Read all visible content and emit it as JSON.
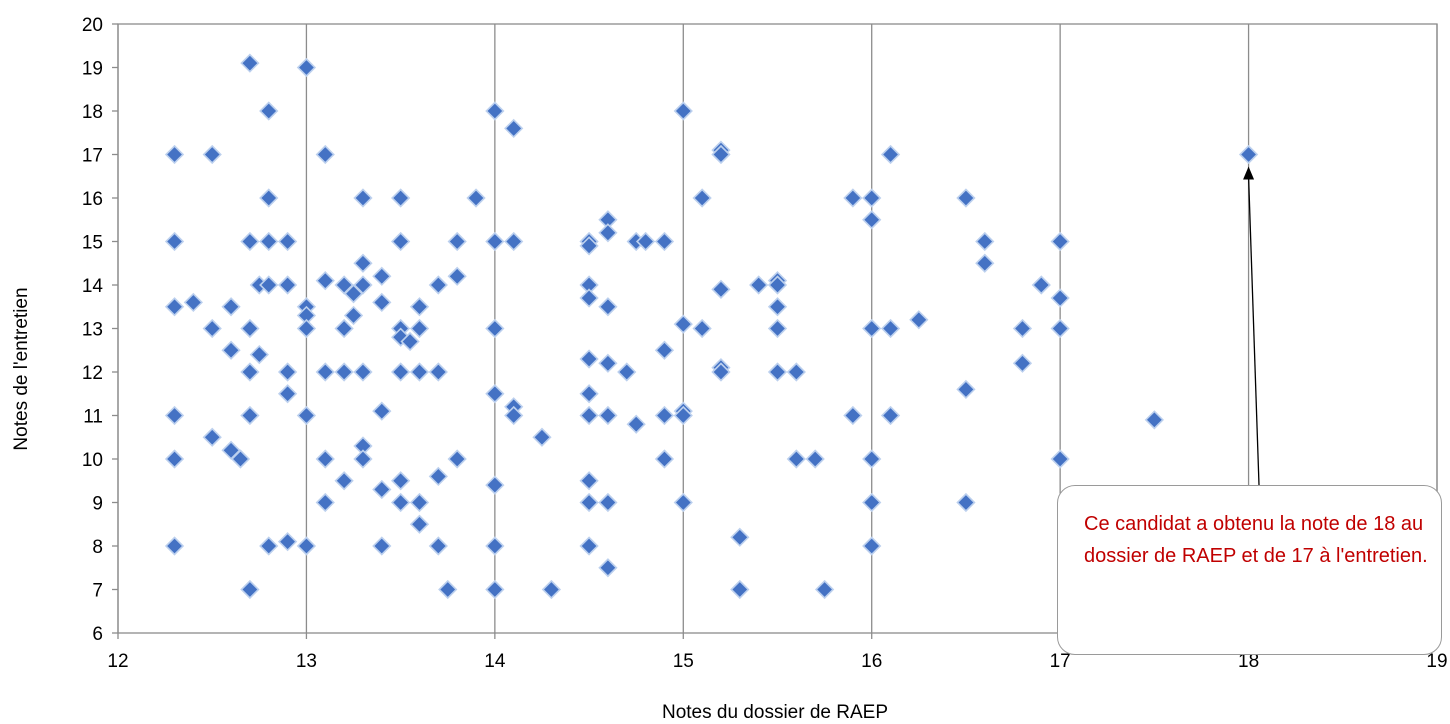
{
  "chart_data": {
    "type": "scatter",
    "title": "",
    "xlabel": "Notes du dossier de RAEP",
    "ylabel": "Notes de l'entretien",
    "xlim": [
      12,
      19
    ],
    "ylim": [
      6,
      20
    ],
    "x_ticks": [
      12,
      13,
      14,
      15,
      16,
      17,
      18,
      19
    ],
    "y_ticks": [
      6,
      7,
      8,
      9,
      10,
      11,
      12,
      13,
      14,
      15,
      16,
      17,
      18,
      19,
      20
    ],
    "grid": "vertical",
    "marker": "diamond",
    "marker_color": "#4472c4",
    "points": [
      [
        12.3,
        17
      ],
      [
        12.3,
        15
      ],
      [
        12.3,
        13.5
      ],
      [
        12.3,
        11
      ],
      [
        12.3,
        10
      ],
      [
        12.3,
        8
      ],
      [
        12.4,
        13.6
      ],
      [
        12.5,
        17
      ],
      [
        12.5,
        13
      ],
      [
        12.5,
        10.5
      ],
      [
        12.6,
        13.5
      ],
      [
        12.6,
        12.5
      ],
      [
        12.6,
        10.2
      ],
      [
        12.65,
        10
      ],
      [
        12.7,
        19.1
      ],
      [
        12.7,
        15
      ],
      [
        12.7,
        13
      ],
      [
        12.7,
        12
      ],
      [
        12.7,
        11
      ],
      [
        12.7,
        7
      ],
      [
        12.75,
        14
      ],
      [
        12.75,
        12.4
      ],
      [
        12.8,
        18
      ],
      [
        12.8,
        16
      ],
      [
        12.8,
        15
      ],
      [
        12.8,
        14
      ],
      [
        12.8,
        8
      ],
      [
        12.9,
        15
      ],
      [
        12.9,
        14
      ],
      [
        12.9,
        12
      ],
      [
        12.9,
        11.5
      ],
      [
        12.9,
        8.1
      ],
      [
        13,
        19
      ],
      [
        13,
        13.5
      ],
      [
        13,
        13.3
      ],
      [
        13,
        13
      ],
      [
        13,
        11
      ],
      [
        13,
        8
      ],
      [
        13.1,
        17
      ],
      [
        13.1,
        14.1
      ],
      [
        13.1,
        12
      ],
      [
        13.1,
        10
      ],
      [
        13.1,
        9
      ],
      [
        13.2,
        14
      ],
      [
        13.2,
        13
      ],
      [
        13.2,
        12
      ],
      [
        13.2,
        9.5
      ],
      [
        13.25,
        13.8
      ],
      [
        13.25,
        13.3
      ],
      [
        13.3,
        16
      ],
      [
        13.3,
        14.5
      ],
      [
        13.3,
        14
      ],
      [
        13.3,
        12
      ],
      [
        13.3,
        10.3
      ],
      [
        13.3,
        10
      ],
      [
        13.4,
        14.2
      ],
      [
        13.4,
        13.6
      ],
      [
        13.4,
        11.1
      ],
      [
        13.4,
        9.3
      ],
      [
        13.4,
        8
      ],
      [
        13.5,
        16
      ],
      [
        13.5,
        15
      ],
      [
        13.5,
        13
      ],
      [
        13.5,
        12.8
      ],
      [
        13.5,
        12
      ],
      [
        13.5,
        9.5
      ],
      [
        13.5,
        9
      ],
      [
        13.55,
        12.7
      ],
      [
        13.6,
        13.5
      ],
      [
        13.6,
        13
      ],
      [
        13.6,
        12
      ],
      [
        13.6,
        9
      ],
      [
        13.6,
        8.5
      ],
      [
        13.7,
        14
      ],
      [
        13.7,
        12
      ],
      [
        13.7,
        9.6
      ],
      [
        13.7,
        8
      ],
      [
        13.75,
        7
      ],
      [
        13.8,
        15
      ],
      [
        13.8,
        14.2
      ],
      [
        13.8,
        10
      ],
      [
        13.9,
        16
      ],
      [
        14,
        18
      ],
      [
        14,
        15
      ],
      [
        14,
        13
      ],
      [
        14,
        11.5
      ],
      [
        14,
        9.4
      ],
      [
        14,
        8
      ],
      [
        14,
        7
      ],
      [
        14.1,
        17.6
      ],
      [
        14.1,
        15
      ],
      [
        14.1,
        11.2
      ],
      [
        14.1,
        11
      ],
      [
        14.25,
        10.5
      ],
      [
        14.3,
        7
      ],
      [
        14.5,
        15
      ],
      [
        14.5,
        14.9
      ],
      [
        14.5,
        14
      ],
      [
        14.5,
        13.7
      ],
      [
        14.5,
        12.3
      ],
      [
        14.5,
        11.5
      ],
      [
        14.5,
        11
      ],
      [
        14.5,
        9.5
      ],
      [
        14.5,
        9
      ],
      [
        14.5,
        8
      ],
      [
        14.6,
        15.5
      ],
      [
        14.6,
        15.2
      ],
      [
        14.6,
        13.5
      ],
      [
        14.6,
        12.2
      ],
      [
        14.6,
        11
      ],
      [
        14.6,
        9
      ],
      [
        14.6,
        7.5
      ],
      [
        14.7,
        12
      ],
      [
        14.75,
        15
      ],
      [
        14.75,
        10.8
      ],
      [
        14.8,
        15
      ],
      [
        14.9,
        15
      ],
      [
        14.9,
        12.5
      ],
      [
        14.9,
        11
      ],
      [
        14.9,
        10
      ],
      [
        15,
        18
      ],
      [
        15,
        13.1
      ],
      [
        15,
        11.1
      ],
      [
        15,
        11
      ],
      [
        15,
        9
      ],
      [
        15.1,
        16
      ],
      [
        15.1,
        13
      ],
      [
        15.2,
        17.1
      ],
      [
        15.2,
        17
      ],
      [
        15.2,
        13.9
      ],
      [
        15.2,
        12.1
      ],
      [
        15.2,
        12
      ],
      [
        15.3,
        8.2
      ],
      [
        15.3,
        7
      ],
      [
        15.4,
        14
      ],
      [
        15.5,
        14.1
      ],
      [
        15.5,
        14
      ],
      [
        15.5,
        13.5
      ],
      [
        15.5,
        13
      ],
      [
        15.5,
        12
      ],
      [
        15.6,
        12
      ],
      [
        15.6,
        10
      ],
      [
        15.7,
        10
      ],
      [
        15.75,
        7
      ],
      [
        15.9,
        16
      ],
      [
        15.9,
        11
      ],
      [
        16,
        16
      ],
      [
        16,
        15.5
      ],
      [
        16,
        13
      ],
      [
        16,
        10
      ],
      [
        16,
        9
      ],
      [
        16,
        8
      ],
      [
        16.1,
        17
      ],
      [
        16.1,
        13
      ],
      [
        16.1,
        11
      ],
      [
        16.25,
        13.2
      ],
      [
        16.5,
        16
      ],
      [
        16.5,
        11.6
      ],
      [
        16.5,
        9
      ],
      [
        16.6,
        15
      ],
      [
        16.6,
        14.5
      ],
      [
        16.8,
        13
      ],
      [
        16.8,
        12.2
      ],
      [
        16.9,
        14
      ],
      [
        17,
        15
      ],
      [
        17,
        13.7
      ],
      [
        17,
        13
      ],
      [
        17,
        10
      ],
      [
        17.5,
        10.9
      ],
      [
        18,
        17
      ]
    ],
    "annotation": {
      "text": "Ce candidat a obtenu la note de 18 au dossier de RAEP et de 17 à l'entretien.",
      "target": [
        18,
        17
      ]
    }
  }
}
